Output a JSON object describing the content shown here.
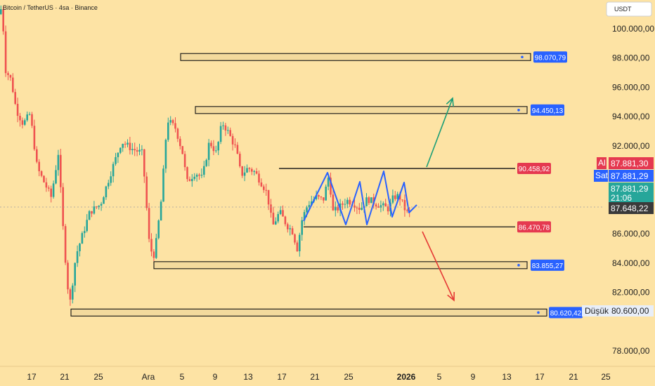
{
  "header": {
    "title": "Bitcoin / TetherUS · 4sa · Binance",
    "currency_button": "USDT"
  },
  "chart_data": {
    "type": "candlestick",
    "title": "Bitcoin / TetherUS · 4sa · Binance",
    "y_ticks": [
      "100.000,00",
      "98.000,00",
      "96.000,00",
      "94.000,00",
      "92.000,00",
      "86.000,00",
      "84.000,00",
      "82.000,00",
      "78.000,00"
    ],
    "y_tick_values": [
      100000,
      98000,
      96000,
      94000,
      92000,
      86000,
      84000,
      82000,
      78000
    ],
    "x_ticks": [
      "17",
      "21",
      "25",
      "Ara",
      "5",
      "9",
      "13",
      "17",
      "21",
      "25",
      "2026",
      "5",
      "9",
      "13",
      "17",
      "21",
      "25"
    ],
    "ylim": [
      76500,
      101300
    ],
    "zones": [
      {
        "label": "98.070,79",
        "value": 98070.79
      },
      {
        "label": "94.450,13",
        "value": 94450.13
      },
      {
        "label": "83.855,27",
        "value": 83855.27
      },
      {
        "label": "80.620,42",
        "value": 80620.42
      }
    ],
    "range_lines": [
      {
        "label": "90.458,92",
        "value": 90458.92
      },
      {
        "label": "86.470,78",
        "value": 86470.78
      }
    ],
    "price_tags": {
      "al_label": "Al",
      "al_value": "87.881,30",
      "sat_label": "Sat",
      "sat_value": "87.881,29",
      "last_value": "87.881,29",
      "countdown": "21:06",
      "crosshair_value": "87.648,22",
      "low_label": "Düşük",
      "low_value": "80.600,00"
    },
    "colors": {
      "up": "#26a69a",
      "down": "#ef5350",
      "zigzag": "#2962ff",
      "arrow_up": "#1b9e77",
      "arrow_down": "#e53935"
    }
  }
}
